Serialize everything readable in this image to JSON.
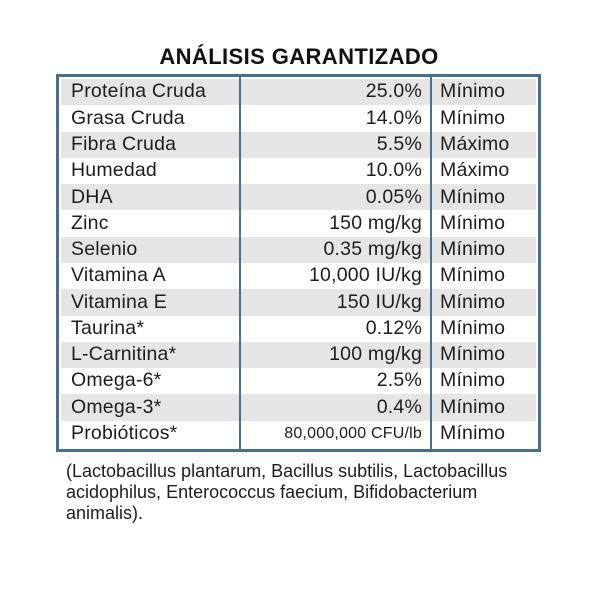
{
  "title": "ANÁLISIS GARANTIZADO",
  "table": {
    "rows": [
      {
        "name": "Proteína Cruda",
        "value": "25.0%",
        "limit": "Mínimo"
      },
      {
        "name": "Grasa Cruda",
        "value": "14.0%",
        "limit": "Mínimo"
      },
      {
        "name": "Fibra Cruda",
        "value": "5.5%",
        "limit": "Máximo"
      },
      {
        "name": "Humedad",
        "value": "10.0%",
        "limit": "Máximo"
      },
      {
        "name": "DHA",
        "value": "0.05%",
        "limit": "Mínimo"
      },
      {
        "name": "Zinc",
        "value": "150 mg/kg",
        "limit": "Mínimo"
      },
      {
        "name": "Selenio",
        "value": "0.35 mg/kg",
        "limit": "Mínimo"
      },
      {
        "name": "Vitamina A",
        "value": "10,000 IU/kg",
        "limit": "Mínimo"
      },
      {
        "name": "Vitamina E",
        "value": "150 IU/kg",
        "limit": "Mínimo"
      },
      {
        "name": "Taurina*",
        "value": "0.12%",
        "limit": "Mínimo"
      },
      {
        "name": "L-Carnitina*",
        "value": "100 mg/kg",
        "limit": "Mínimo"
      },
      {
        "name": "Omega-6*",
        "value": "2.5%",
        "limit": "Mínimo"
      },
      {
        "name": "Omega-3*",
        "value": "0.4%",
        "limit": "Mínimo"
      },
      {
        "name": "Probióticos*",
        "value": "80,000,000 CFU/lb",
        "limit": "Mínimo"
      }
    ]
  },
  "footnote": {
    "lines": [
      "(Lactobacillus plantarum, Bacillus subtilis, Lactobacillus",
      "acidophilus, Enterococcus faecium, Bifidobacterium",
      "animalis)."
    ]
  },
  "colors": {
    "border": "#45718e",
    "row_shade": "#e5e5e5",
    "text": "#1d1d1d"
  }
}
